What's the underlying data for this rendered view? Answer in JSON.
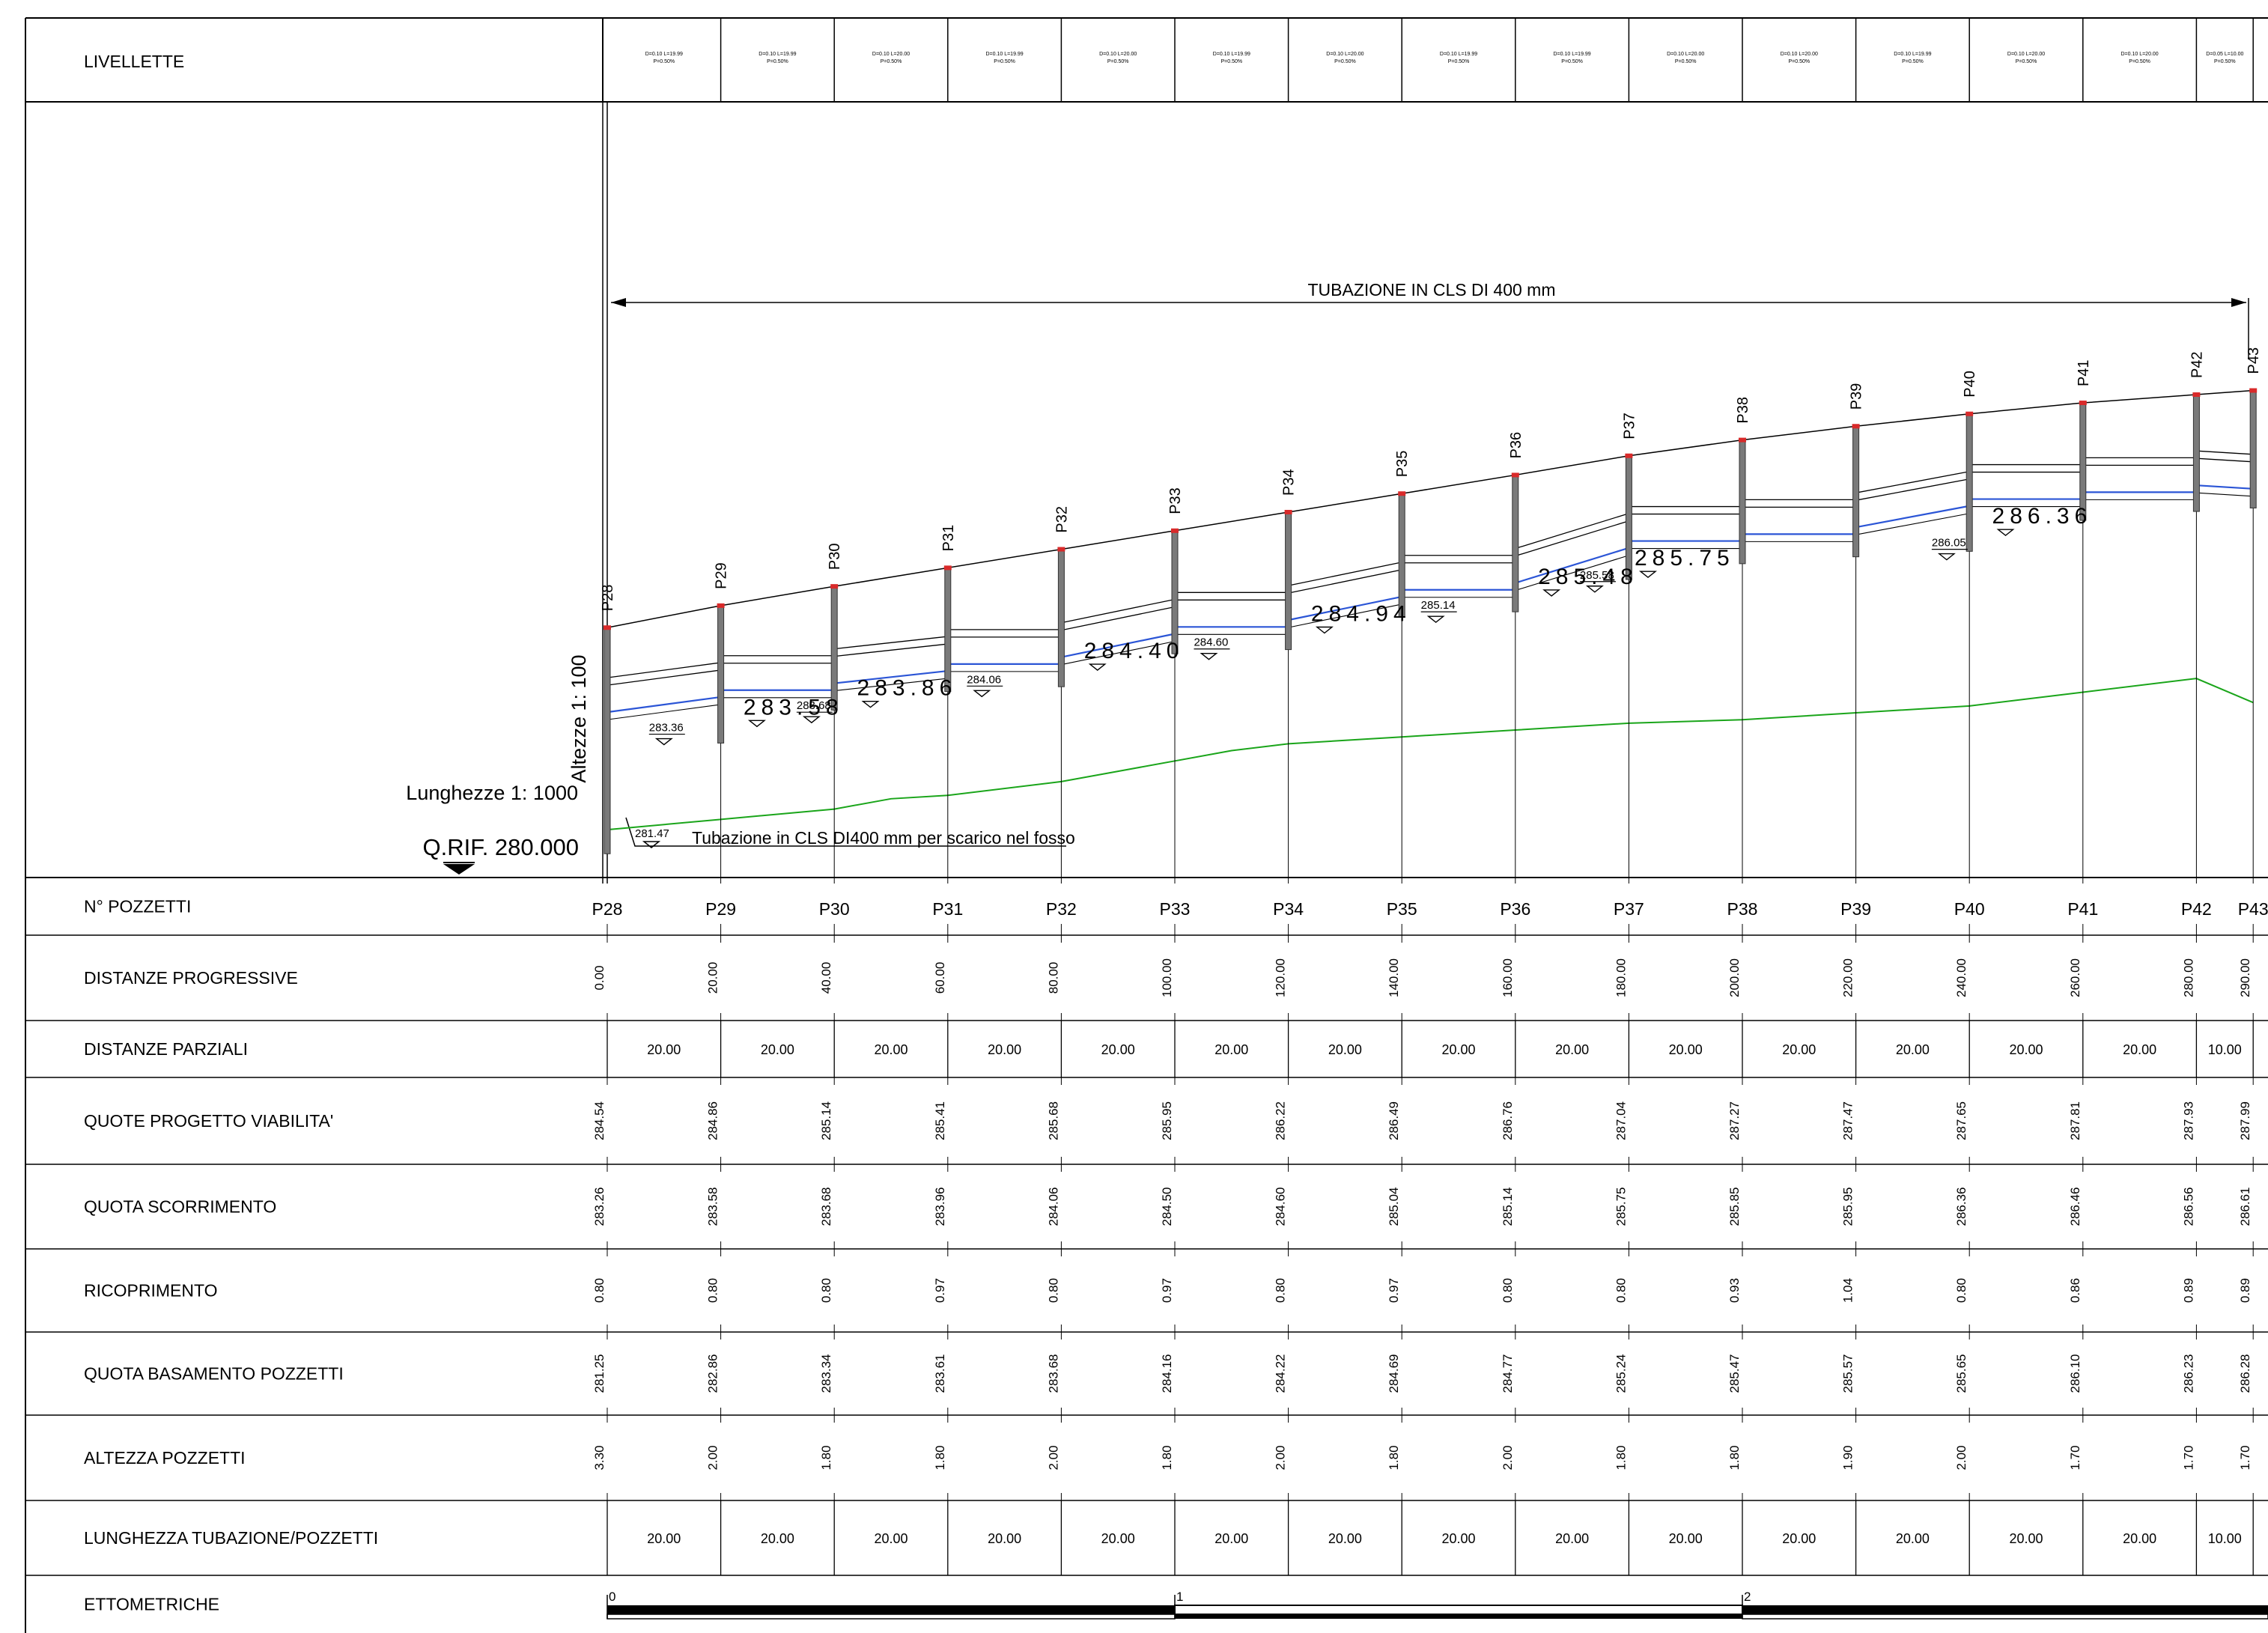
{
  "livellette": {
    "title": "LIVELLETTE",
    "cells": [
      [
        "D=0.10 L=19.99",
        "P=0.50%"
      ],
      [
        "D=0.10 L=19.99",
        "P=0.50%"
      ],
      [
        "D=0.10 L=20.00",
        "P=0.50%"
      ],
      [
        "D=0.10 L=19.99",
        "P=0.50%"
      ],
      [
        "D=0.10 L=20.00",
        "P=0.50%"
      ],
      [
        "D=0.10 L=19.99",
        "P=0.50%"
      ],
      [
        "D=0.10 L=20.00",
        "P=0.50%"
      ],
      [
        "D=0.10 L=19.99",
        "P=0.50%"
      ],
      [
        "D=0.10 L=19.99",
        "P=0.50%"
      ],
      [
        "D=0.10 L=20.00",
        "P=0.50%"
      ],
      [
        "D=0.10 L=20.00",
        "P=0.50%"
      ],
      [
        "D=0.10 L=19.99",
        "P=0.50%"
      ],
      [
        "D=0.10 L=20.00",
        "P=0.50%"
      ],
      [
        "D=0.10 L=20.00",
        "P=0.50%"
      ],
      [
        "D=0.05 L=10.00",
        "P=0.50%"
      ]
    ]
  },
  "profile": {
    "pipe_label": "TUBAZIONE IN CLS DI 400 mm",
    "outfall_label": "Tubazione in CLS DI400 mm per scarico nel fosso",
    "outfall_elev": "281.47",
    "scale_heights": "Altezze 1: 100",
    "scale_lengths": "Lunghezze 1: 1000",
    "reference": "Q.RIF. 280.000",
    "ref_elevation": 280,
    "ground_line": [
      [
        0,
        281.6
      ],
      [
        20,
        281.75
      ],
      [
        40,
        281.9
      ],
      [
        50,
        282.05
      ],
      [
        60,
        282.1
      ],
      [
        80,
        282.3
      ],
      [
        90,
        282.45
      ],
      [
        100,
        282.6
      ],
      [
        110,
        282.75
      ],
      [
        120,
        282.85
      ],
      [
        140,
        282.95
      ],
      [
        150,
        283.0
      ],
      [
        160,
        283.05
      ],
      [
        170,
        283.1
      ],
      [
        180,
        283.15
      ],
      [
        200,
        283.2
      ],
      [
        220,
        283.3
      ],
      [
        240,
        283.4
      ],
      [
        260,
        283.6
      ],
      [
        280,
        283.8
      ],
      [
        290,
        283.45
      ]
    ],
    "slope_labels_small": [
      {
        "station": 10,
        "value": "283.36"
      },
      {
        "station": 36,
        "value": "283.68"
      },
      {
        "station": 66,
        "value": "284.06"
      },
      {
        "station": 106,
        "value": "284.60"
      },
      {
        "station": 146,
        "value": "285.14"
      },
      {
        "station": 174,
        "value": "285.58"
      },
      {
        "station": 236,
        "value": "286.05"
      }
    ],
    "slope_labels_large": [
      {
        "station": 24,
        "value": "283.58"
      },
      {
        "station": 44,
        "value": "283.86"
      },
      {
        "station": 84,
        "value": "284.40"
      },
      {
        "station": 124,
        "value": "284.94"
      },
      {
        "station": 164,
        "value": "285.48"
      },
      {
        "station": 181,
        "value": "285.75"
      },
      {
        "station": 244,
        "value": "286.36"
      }
    ]
  },
  "table": {
    "rows": [
      {
        "key": "pozzetti",
        "label": "N° POZZETTI"
      },
      {
        "key": "prog",
        "label": "DISTANZE PROGRESSIVE"
      },
      {
        "key": "parz",
        "label": "DISTANZE PARZIALI"
      },
      {
        "key": "viab",
        "label": "QUOTE PROGETTO VIABILITA'"
      },
      {
        "key": "scorr",
        "label": "QUOTA SCORRIMENTO"
      },
      {
        "key": "ricop",
        "label": "RICOPRIMENTO"
      },
      {
        "key": "basam",
        "label": "QUOTA BASAMENTO POZZETTI"
      },
      {
        "key": "alt",
        "label": "ALTEZZA POZZETTI"
      },
      {
        "key": "lung",
        "label": "LUNGHEZZA TUBAZIONE/POZZETTI"
      },
      {
        "key": "etto",
        "label": "ETTOMETRICHE"
      }
    ],
    "wells": [
      "P28",
      "P29",
      "P30",
      "P31",
      "P32",
      "P33",
      "P34",
      "P35",
      "P36",
      "P37",
      "P38",
      "P39",
      "P40",
      "P41",
      "P42",
      "P43"
    ],
    "stations": [
      0,
      20,
      40,
      60,
      80,
      100,
      120,
      140,
      160,
      180,
      200,
      220,
      240,
      260,
      280,
      290
    ],
    "progressive": [
      "0.00",
      "20.00",
      "40.00",
      "60.00",
      "80.00",
      "100.00",
      "120.00",
      "140.00",
      "160.00",
      "180.00",
      "200.00",
      "220.00",
      "240.00",
      "260.00",
      "280.00",
      "290.00"
    ],
    "partial": [
      "20.00",
      "20.00",
      "20.00",
      "20.00",
      "20.00",
      "20.00",
      "20.00",
      "20.00",
      "20.00",
      "20.00",
      "20.00",
      "20.00",
      "20.00",
      "20.00",
      "10.00"
    ],
    "road": [
      "284.54",
      "284.86",
      "285.14",
      "285.41",
      "285.68",
      "285.95",
      "286.22",
      "286.49",
      "286.76",
      "287.04",
      "287.27",
      "287.47",
      "287.65",
      "287.81",
      "287.93",
      "287.99"
    ],
    "invert": [
      "283.26",
      "283.58",
      "283.68",
      "283.96",
      "284.06",
      "284.50",
      "284.60",
      "285.04",
      "285.14",
      "285.75",
      "285.85",
      "285.95",
      "286.36",
      "286.46",
      "286.56",
      "286.61"
    ],
    "cover": [
      "0.80",
      "0.80",
      "0.80",
      "0.97",
      "0.80",
      "0.97",
      "0.80",
      "0.97",
      "0.80",
      "0.80",
      "0.93",
      "1.04",
      "0.80",
      "0.86",
      "0.89",
      "0.89"
    ],
    "base": [
      "281.25",
      "282.86",
      "283.34",
      "283.61",
      "283.68",
      "284.16",
      "284.22",
      "284.69",
      "284.77",
      "285.24",
      "285.47",
      "285.57",
      "285.65",
      "286.10",
      "286.23",
      "286.28"
    ],
    "height": [
      "3.30",
      "2.00",
      "1.80",
      "1.80",
      "2.00",
      "1.80",
      "2.00",
      "1.80",
      "2.00",
      "1.80",
      "1.80",
      "1.90",
      "2.00",
      "1.70",
      "1.70",
      "1.70"
    ],
    "length": [
      "20.00",
      "20.00",
      "20.00",
      "20.00",
      "20.00",
      "20.00",
      "20.00",
      "20.00",
      "20.00",
      "20.00",
      "20.00",
      "20.00",
      "20.00",
      "20.00",
      "10.00"
    ],
    "hectometric": [
      "0",
      "1",
      "2"
    ]
  }
}
